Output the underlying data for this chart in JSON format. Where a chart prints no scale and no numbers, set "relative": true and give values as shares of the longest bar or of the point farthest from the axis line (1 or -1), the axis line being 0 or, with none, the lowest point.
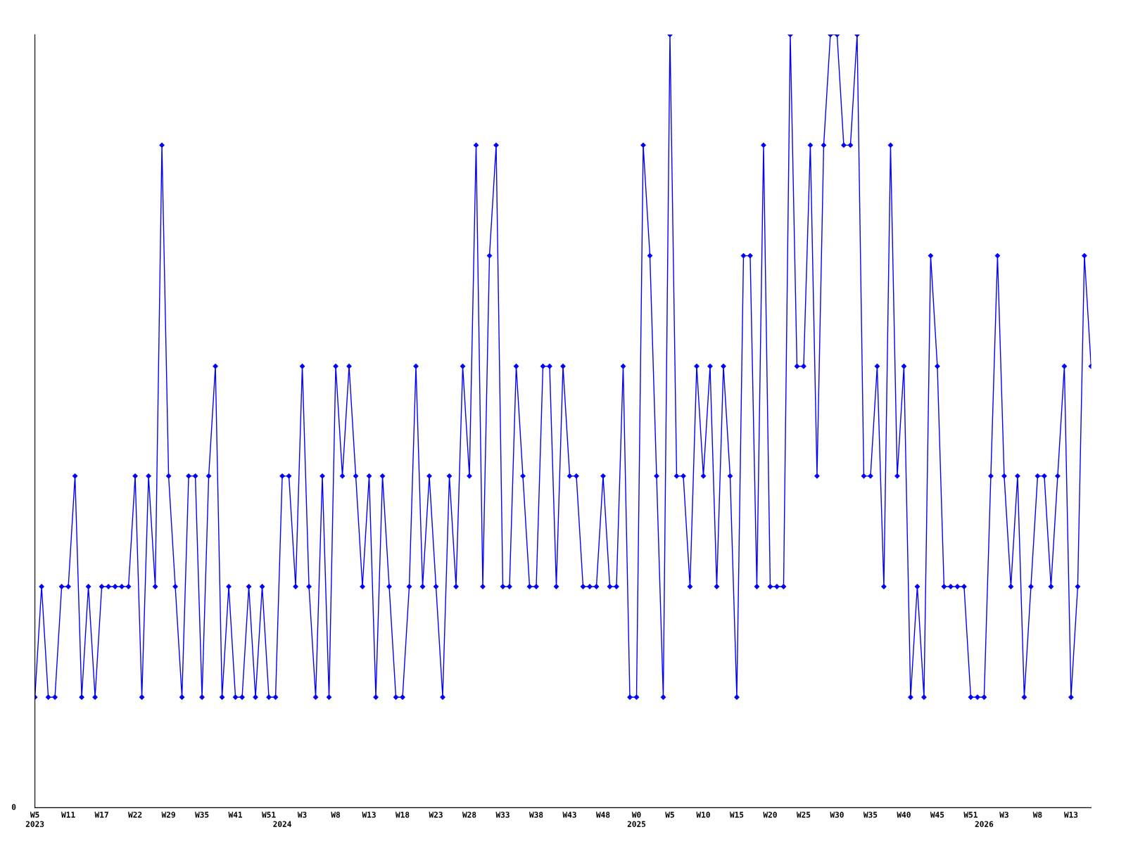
{
  "chart_data": {
    "type": "line",
    "relative": true,
    "marker": "diamond",
    "line_style": "solid",
    "annotations": [
      "0"
    ],
    "categories": [
      "W5\n2023",
      null,
      null,
      null,
      null,
      "W11",
      null,
      null,
      null,
      null,
      "W17",
      null,
      null,
      null,
      null,
      "W22",
      null,
      null,
      null,
      null,
      "W29",
      null,
      null,
      null,
      null,
      "W35",
      null,
      null,
      null,
      null,
      "W41",
      null,
      null,
      null,
      null,
      "W51",
      null,
      "\n2024",
      null,
      null,
      "W3",
      null,
      null,
      null,
      null,
      "W8",
      null,
      null,
      null,
      null,
      "W13",
      null,
      null,
      null,
      null,
      "W18",
      null,
      null,
      null,
      null,
      "W23",
      null,
      null,
      null,
      null,
      "W28",
      null,
      null,
      null,
      null,
      "W33",
      null,
      null,
      null,
      null,
      "W38",
      null,
      null,
      null,
      null,
      "W43",
      null,
      null,
      null,
      null,
      "W48",
      null,
      null,
      null,
      null,
      "W0\n2025",
      null,
      null,
      null,
      null,
      "W5",
      null,
      null,
      null,
      null,
      "W10",
      null,
      null,
      null,
      null,
      "W15",
      null,
      null,
      null,
      null,
      "W20",
      null,
      null,
      null,
      null,
      "W25",
      null,
      null,
      null,
      null,
      "W30",
      null,
      null,
      null,
      null,
      "W35",
      null,
      null,
      null,
      null,
      "W40",
      null,
      null,
      null,
      null,
      "W45",
      null,
      null,
      null,
      null,
      "W51",
      null,
      "\n2026",
      null,
      null,
      "W3",
      null,
      null,
      null,
      null,
      "W8",
      null,
      null,
      null,
      null,
      "W13",
      null,
      null,
      null
    ],
    "series": [
      {
        "color": "#0000ff",
        "values": [
          0.143,
          0.286,
          0.143,
          0.143,
          0.286,
          0.286,
          0.429,
          0.143,
          0.286,
          0.143,
          0.286,
          0.286,
          0.286,
          0.286,
          0.286,
          0.429,
          0.143,
          0.429,
          0.286,
          0.857,
          0.429,
          0.286,
          0.143,
          0.429,
          0.429,
          0.143,
          0.429,
          0.571,
          0.143,
          0.286,
          0.143,
          0.143,
          0.286,
          0.143,
          0.286,
          0.143,
          0.143,
          0.429,
          0.429,
          0.286,
          0.571,
          0.286,
          0.143,
          0.429,
          0.143,
          0.571,
          0.429,
          0.571,
          0.429,
          0.286,
          0.429,
          0.143,
          0.429,
          0.286,
          0.143,
          0.143,
          0.286,
          0.571,
          0.286,
          0.429,
          0.286,
          0.143,
          0.429,
          0.286,
          0.571,
          0.429,
          0.857,
          0.286,
          0.714,
          0.857,
          0.286,
          0.286,
          0.571,
          0.429,
          0.286,
          0.286,
          0.571,
          0.571,
          0.286,
          0.571,
          0.429,
          0.429,
          0.286,
          0.286,
          0.286,
          0.429,
          0.286,
          0.286,
          0.571,
          0.143,
          0.143,
          0.857,
          0.714,
          0.429,
          0.143,
          1,
          0.429,
          0.429,
          0.286,
          0.571,
          0.429,
          0.571,
          0.286,
          0.571,
          0.429,
          0.143,
          0.714,
          0.714,
          0.286,
          0.857,
          0.286,
          0.286,
          0.286,
          1,
          0.571,
          0.571,
          0.857,
          0.429,
          0.857,
          1,
          1,
          0.857,
          0.857,
          1,
          0.429,
          0.429,
          0.571,
          0.286,
          0.857,
          0.429,
          0.571,
          0.143,
          0.286,
          0.143,
          0.714,
          0.571,
          0.286,
          0.286,
          0.286,
          0.286,
          0.143,
          0.143,
          0.143,
          0.429,
          0.714,
          0.429,
          0.286,
          0.429,
          0.143,
          0.286,
          0.429,
          0.429,
          0.286,
          0.429,
          0.571,
          0.143,
          0.286,
          0.714,
          0.571
        ]
      }
    ]
  }
}
